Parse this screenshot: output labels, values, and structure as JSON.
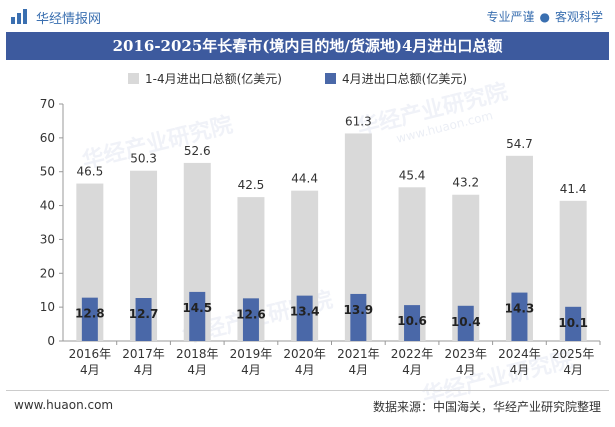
{
  "header": {
    "brand": "华经情报网",
    "tagline_left": "专业严谨",
    "tagline_sep": "●",
    "tagline_right": "客观科学"
  },
  "watermark": {
    "text": "华经产业研究院",
    "url": "www.huaon.com"
  },
  "footer": {
    "website": "www.huaon.com",
    "source": "数据来源：中国海关，华经产业研究院整理"
  },
  "colors": {
    "title_bg": "#3d5a9e",
    "series_total": "#d9d9d9",
    "series_april": "#4a68a8",
    "brand_blue": "#3a6fb0"
  },
  "chart_data": {
    "type": "bar",
    "title": "2016-2025年长春市(境内目的地/货源地)4月进出口总额",
    "categories": [
      "2016年4月",
      "2017年4月",
      "2018年4月",
      "2019年4月",
      "2020年4月",
      "2021年4月",
      "2022年4月",
      "2023年4月",
      "2024年4月",
      "2025年4月"
    ],
    "series": [
      {
        "name": "1-4月进出口总额(亿美元)",
        "values": [
          46.5,
          50.3,
          52.6,
          42.5,
          44.4,
          61.3,
          45.4,
          43.2,
          54.7,
          41.4
        ]
      },
      {
        "name": "4月进出口总额(亿美元)",
        "values": [
          12.8,
          12.7,
          14.5,
          12.6,
          13.4,
          13.9,
          10.6,
          10.4,
          14.3,
          10.1
        ]
      }
    ],
    "ylim": [
      0,
      70
    ],
    "yticks": [
      0,
      10,
      20,
      30,
      40,
      50,
      60,
      70
    ],
    "grid": false,
    "legend_position": "top-center",
    "overlap_bars": true
  }
}
